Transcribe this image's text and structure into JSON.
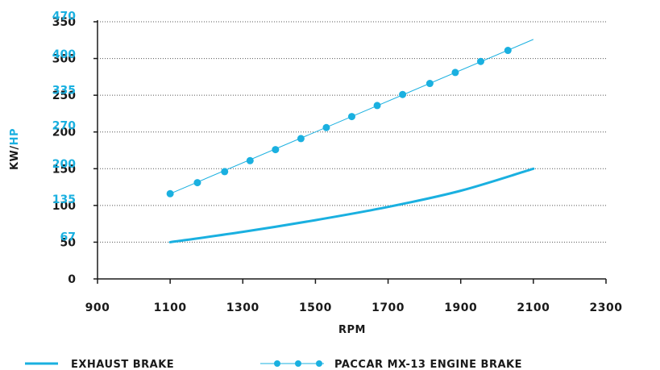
{
  "chart_data": {
    "type": "line",
    "xlabel": "RPM",
    "ylabel_left": "KW",
    "ylabel_sep": "/",
    "ylabel_right": "HP",
    "xlim": [
      900,
      2300
    ],
    "ylim": [
      0,
      350
    ],
    "x_ticks": [
      "900",
      "1100",
      "1300",
      "1500",
      "1700",
      "1900",
      "2100",
      "2300"
    ],
    "kw_ticks": [
      {
        "value": 0,
        "label": "0"
      },
      {
        "value": 50,
        "label": "50"
      },
      {
        "value": 100,
        "label": "100"
      },
      {
        "value": 150,
        "label": "150"
      },
      {
        "value": 200,
        "label": "200"
      },
      {
        "value": 250,
        "label": "250"
      },
      {
        "value": 300,
        "label": "300"
      },
      {
        "value": 350,
        "label": "350"
      }
    ],
    "hp_ticks": [
      {
        "value": 67,
        "label": "67"
      },
      {
        "value": 135,
        "label": "135"
      },
      {
        "value": 200,
        "label": "200"
      },
      {
        "value": 270,
        "label": "270"
      },
      {
        "value": 335,
        "label": "335"
      },
      {
        "value": 400,
        "label": "400"
      },
      {
        "value": 470,
        "label": "470"
      }
    ],
    "grid": "horizontal-dotted",
    "legend_position": "bottom",
    "series": [
      {
        "name": "EXHAUST BRAKE",
        "color": "#1ab0e0",
        "marker": "none",
        "points": [
          [
            1100,
            50
          ],
          [
            1300,
            64
          ],
          [
            1500,
            80
          ],
          [
            1700,
            98
          ],
          [
            1900,
            120
          ],
          [
            2100,
            150
          ]
        ]
      },
      {
        "name": "PACCAR MX-13 ENGINE BRAKE",
        "color": "#1ab0e0",
        "marker": "circle",
        "points": [
          [
            1100,
            116
          ],
          [
            1175,
            131
          ],
          [
            1250,
            146
          ],
          [
            1320,
            161
          ],
          [
            1390,
            176
          ],
          [
            1460,
            191
          ],
          [
            1530,
            206
          ],
          [
            1600,
            221
          ],
          [
            1670,
            236
          ],
          [
            1740,
            251
          ],
          [
            1815,
            266
          ],
          [
            1885,
            281
          ],
          [
            1955,
            296
          ],
          [
            2030,
            311
          ]
        ],
        "line_end": [
          2100,
          326
        ]
      }
    ]
  }
}
